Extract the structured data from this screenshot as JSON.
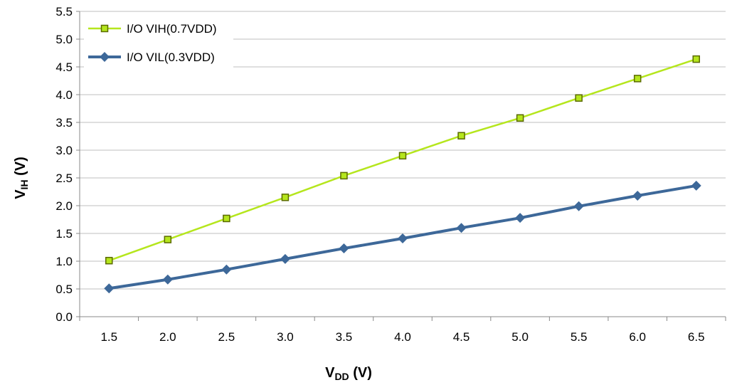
{
  "chart_data": {
    "type": "line",
    "title": "",
    "xlabel": "V",
    "xlabel_sub": "DD",
    "xlabel_unit": " (V)",
    "ylabel": "V",
    "ylabel_sub": "IH",
    "ylabel_unit": " (V)",
    "ylim": [
      0,
      5.5
    ],
    "yticks": [
      "0.0",
      "0.5",
      "1.0",
      "1.5",
      "2.0",
      "2.5",
      "3.0",
      "3.5",
      "4.0",
      "4.5",
      "5.0",
      "5.5"
    ],
    "categories": [
      "1.5",
      "2.0",
      "2.5",
      "3.0",
      "3.5",
      "4.0",
      "4.5",
      "5.0",
      "5.5",
      "6.0",
      "6.5"
    ],
    "grid": true,
    "legend_position": "top-left",
    "series": [
      {
        "name": "I/O VIH(0.7VDD)",
        "color": "#b5e61d",
        "marker": "square",
        "values": [
          1.01,
          1.39,
          1.77,
          2.15,
          2.54,
          2.9,
          3.26,
          3.58,
          3.94,
          4.29,
          4.64
        ]
      },
      {
        "name": "I/O VIL(0.3VDD)",
        "color": "#3d6899",
        "marker": "diamond",
        "values": [
          0.51,
          0.67,
          0.85,
          1.04,
          1.23,
          1.41,
          1.6,
          1.78,
          1.99,
          2.18,
          2.36
        ]
      }
    ]
  }
}
